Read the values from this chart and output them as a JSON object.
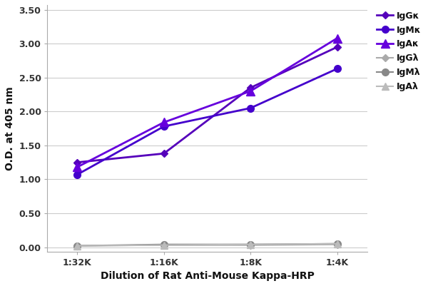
{
  "x_labels": [
    "1:32K",
    "1:16K",
    "1:8K",
    "1:4K"
  ],
  "x_values": [
    0,
    1,
    2,
    3
  ],
  "series": [
    {
      "label": "IgGκ",
      "color": "#5500bb",
      "marker": "D",
      "markersize": 5,
      "linewidth": 2.0,
      "values": [
        1.25,
        1.38,
        2.35,
        2.95
      ]
    },
    {
      "label": "IgMκ",
      "color": "#4400cc",
      "marker": "o",
      "markersize": 7,
      "linewidth": 2.0,
      "values": [
        1.07,
        1.78,
        2.05,
        2.63
      ]
    },
    {
      "label": "IgAκ",
      "color": "#6600dd",
      "marker": "^",
      "markersize": 8,
      "linewidth": 2.0,
      "values": [
        1.18,
        1.84,
        2.3,
        3.08
      ]
    },
    {
      "label": "IgGλ",
      "color": "#aaaaaa",
      "marker": "D",
      "markersize": 5,
      "linewidth": 1.5,
      "values": [
        0.02,
        0.03,
        0.03,
        0.04
      ]
    },
    {
      "label": "IgMλ",
      "color": "#888888",
      "marker": "o",
      "markersize": 7,
      "linewidth": 1.5,
      "values": [
        0.02,
        0.04,
        0.04,
        0.05
      ]
    },
    {
      "label": "IgAλ",
      "color": "#bbbbbb",
      "marker": "^",
      "markersize": 7,
      "linewidth": 1.5,
      "values": [
        0.02,
        0.03,
        0.04,
        0.05
      ]
    }
  ],
  "xlabel": "Dilution of Rat Anti-Mouse Kappa-HRP",
  "ylabel": "O.D. at 405 nm",
  "ylim": [
    -0.07,
    3.57
  ],
  "xlim": [
    -0.35,
    3.35
  ],
  "yticks": [
    0.0,
    0.5,
    1.0,
    1.5,
    2.0,
    2.5,
    3.0,
    3.5
  ],
  "background_color": "#ffffff",
  "grid_color": "#cccccc",
  "legend_fontsize": 9,
  "axis_fontsize": 10,
  "tick_fontsize": 9
}
